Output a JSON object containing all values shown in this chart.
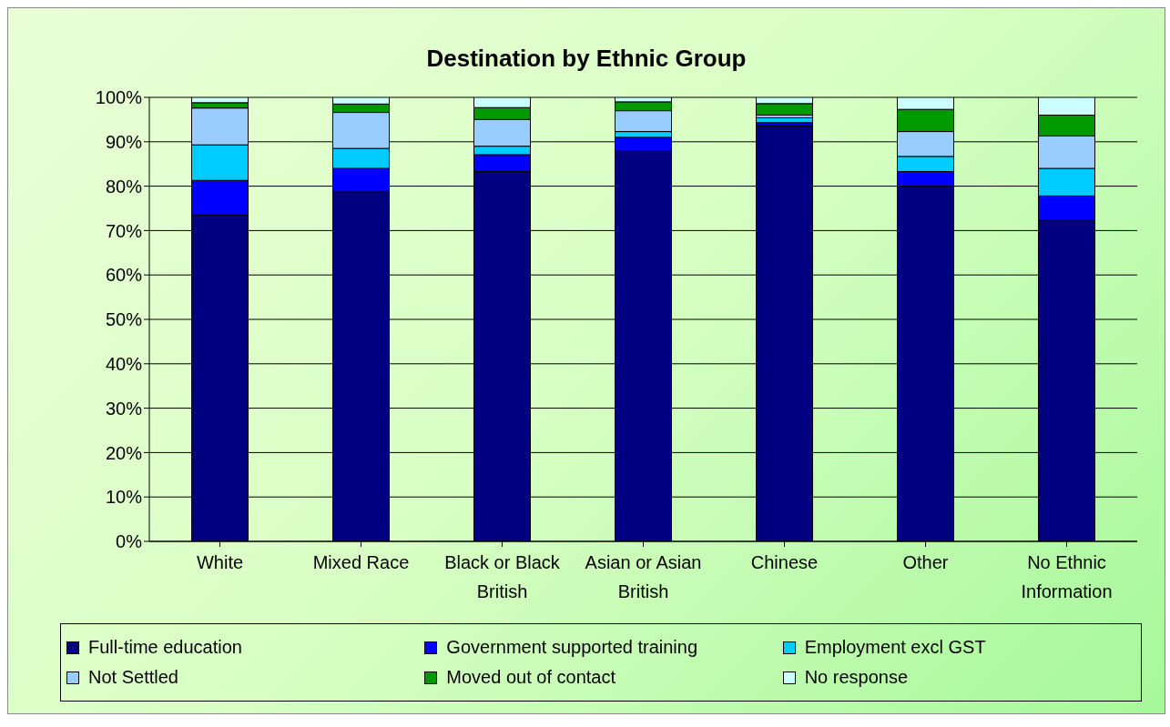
{
  "chart_data": {
    "type": "bar",
    "title": "Destination by Ethnic Group",
    "stacked": true,
    "categories": [
      "White",
      "Mixed Race",
      "Black or Black British",
      "Asian or Asian British",
      "Chinese",
      "Other",
      "No Ethnic Information"
    ],
    "series": [
      {
        "name": "Full-time education",
        "color": "#000080",
        "values": [
          73.5,
          78.7,
          83.3,
          88,
          93.6,
          80,
          72.4
        ]
      },
      {
        "name": "Government supported training",
        "color": "#0000ff",
        "values": [
          7.8,
          5.3,
          3.8,
          3,
          0.7,
          3.3,
          5.4
        ]
      },
      {
        "name": "Employment excl GST",
        "color": "#00ccff",
        "values": [
          8,
          4.5,
          1.9,
          1.3,
          1.1,
          3.4,
          6.2
        ]
      },
      {
        "name": "Not Settled",
        "color": "#99ccff",
        "values": [
          8.3,
          8.1,
          6,
          4.7,
          0.6,
          5.6,
          7.3
        ]
      },
      {
        "name": "Moved out of contact",
        "color": "#009900",
        "values": [
          1.2,
          1.9,
          2.7,
          2,
          2.6,
          5,
          4.7
        ]
      },
      {
        "name": "No response",
        "color": "#ccffff",
        "values": [
          1.2,
          1.5,
          2.3,
          1,
          1.4,
          2.7,
          4
        ]
      }
    ],
    "ylim": [
      0,
      100
    ],
    "yticks": [
      {
        "value": 0,
        "label": "0%"
      },
      {
        "value": 10,
        "label": "10%"
      },
      {
        "value": 20,
        "label": "20%"
      },
      {
        "value": 30,
        "label": "30%"
      },
      {
        "value": 40,
        "label": "40%"
      },
      {
        "value": 50,
        "label": "50%"
      },
      {
        "value": 60,
        "label": "60%"
      },
      {
        "value": 70,
        "label": "70%"
      },
      {
        "value": 80,
        "label": "80%"
      },
      {
        "value": 90,
        "label": "90%"
      },
      {
        "value": 100,
        "label": "100%"
      }
    ],
    "grid": "y",
    "legend": "bottom"
  }
}
